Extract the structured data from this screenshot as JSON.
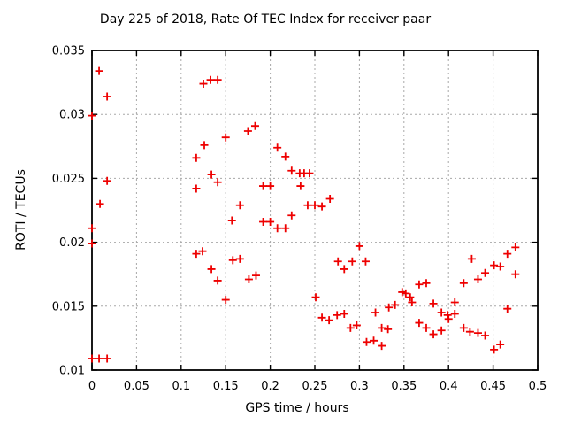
{
  "chart_data": {
    "type": "scatter",
    "title": "Day 225 of 2018, Rate Of TEC Index for receiver paar",
    "xlabel": "GPS time / hours",
    "ylabel": "ROTI / TECUs",
    "xlim": [
      0,
      0.5
    ],
    "ylim": [
      0.01,
      0.035
    ],
    "xtick_values": [
      0,
      0.05,
      0.1,
      0.15,
      0.2,
      0.25,
      0.3,
      0.35,
      0.4,
      0.45,
      0.5
    ],
    "xtick_labels": [
      "0",
      "0.05",
      "0.1",
      "0.15",
      "0.2",
      "0.25",
      "0.3",
      "0.35",
      "0.4",
      "0.45",
      "0.5"
    ],
    "ytick_values": [
      0.01,
      0.015,
      0.02,
      0.025,
      0.03,
      0.035
    ],
    "ytick_labels": [
      "0.01",
      "0.015",
      "0.02",
      "0.025",
      "0.03",
      "0.035"
    ],
    "grid": true,
    "legend": "none",
    "marker": {
      "shape": "plus",
      "color": "#ee0000",
      "size": 9,
      "stroke_width": 1.8
    },
    "grid_color": "#a8a8a8",
    "border_color": "#000000",
    "text_color": "#000000",
    "background_color": "#ffffff",
    "points": [
      [
        0.0,
        0.0299
      ],
      [
        0.0,
        0.0211
      ],
      [
        0.0,
        0.0199
      ],
      [
        0.0,
        0.0109
      ],
      [
        0.008,
        0.0334
      ],
      [
        0.008,
        0.0109
      ],
      [
        0.009,
        0.023
      ],
      [
        0.017,
        0.0314
      ],
      [
        0.017,
        0.0248
      ],
      [
        0.017,
        0.0109
      ],
      [
        0.117,
        0.0266
      ],
      [
        0.117,
        0.0242
      ],
      [
        0.117,
        0.0191
      ],
      [
        0.124,
        0.0193
      ],
      [
        0.125,
        0.0324
      ],
      [
        0.126,
        0.0276
      ],
      [
        0.133,
        0.0327
      ],
      [
        0.134,
        0.0253
      ],
      [
        0.134,
        0.0179
      ],
      [
        0.141,
        0.0327
      ],
      [
        0.141,
        0.0247
      ],
      [
        0.141,
        0.017
      ],
      [
        0.15,
        0.0282
      ],
      [
        0.15,
        0.0155
      ],
      [
        0.157,
        0.0217
      ],
      [
        0.158,
        0.0186
      ],
      [
        0.166,
        0.0229
      ],
      [
        0.166,
        0.0187
      ],
      [
        0.175,
        0.0287
      ],
      [
        0.176,
        0.0171
      ],
      [
        0.183,
        0.0291
      ],
      [
        0.184,
        0.0174
      ],
      [
        0.192,
        0.0244
      ],
      [
        0.192,
        0.0216
      ],
      [
        0.2,
        0.0244
      ],
      [
        0.2,
        0.0216
      ],
      [
        0.208,
        0.0274
      ],
      [
        0.208,
        0.0211
      ],
      [
        0.217,
        0.0267
      ],
      [
        0.217,
        0.0211
      ],
      [
        0.224,
        0.0256
      ],
      [
        0.224,
        0.0221
      ],
      [
        0.233,
        0.0254
      ],
      [
        0.238,
        0.0254
      ],
      [
        0.244,
        0.0254
      ],
      [
        0.234,
        0.0244
      ],
      [
        0.242,
        0.0229
      ],
      [
        0.25,
        0.0229
      ],
      [
        0.258,
        0.0228
      ],
      [
        0.267,
        0.0234
      ],
      [
        0.251,
        0.0157
      ],
      [
        0.258,
        0.0141
      ],
      [
        0.266,
        0.0139
      ],
      [
        0.275,
        0.0143
      ],
      [
        0.276,
        0.0185
      ],
      [
        0.283,
        0.0179
      ],
      [
        0.283,
        0.0144
      ],
      [
        0.29,
        0.0133
      ],
      [
        0.292,
        0.0185
      ],
      [
        0.297,
        0.0135
      ],
      [
        0.3,
        0.0197
      ],
      [
        0.307,
        0.0185
      ],
      [
        0.308,
        0.0122
      ],
      [
        0.316,
        0.0123
      ],
      [
        0.318,
        0.0145
      ],
      [
        0.325,
        0.0133
      ],
      [
        0.325,
        0.0119
      ],
      [
        0.332,
        0.0132
      ],
      [
        0.333,
        0.0149
      ],
      [
        0.34,
        0.0151
      ],
      [
        0.348,
        0.0161
      ],
      [
        0.352,
        0.016
      ],
      [
        0.357,
        0.0157
      ],
      [
        0.359,
        0.0153
      ],
      [
        0.367,
        0.0167
      ],
      [
        0.367,
        0.0137
      ],
      [
        0.375,
        0.0168
      ],
      [
        0.375,
        0.0133
      ],
      [
        0.383,
        0.0152
      ],
      [
        0.383,
        0.0128
      ],
      [
        0.392,
        0.0145
      ],
      [
        0.392,
        0.0131
      ],
      [
        0.399,
        0.0143
      ],
      [
        0.4,
        0.014
      ],
      [
        0.407,
        0.0153
      ],
      [
        0.407,
        0.0144
      ],
      [
        0.417,
        0.0168
      ],
      [
        0.417,
        0.0133
      ],
      [
        0.424,
        0.013
      ],
      [
        0.426,
        0.0187
      ],
      [
        0.433,
        0.0171
      ],
      [
        0.433,
        0.0129
      ],
      [
        0.441,
        0.0176
      ],
      [
        0.441,
        0.0127
      ],
      [
        0.451,
        0.0182
      ],
      [
        0.451,
        0.0116
      ],
      [
        0.458,
        0.0181
      ],
      [
        0.458,
        0.012
      ],
      [
        0.466,
        0.0191
      ],
      [
        0.466,
        0.0148
      ],
      [
        0.475,
        0.0196
      ],
      [
        0.475,
        0.0175
      ]
    ]
  }
}
